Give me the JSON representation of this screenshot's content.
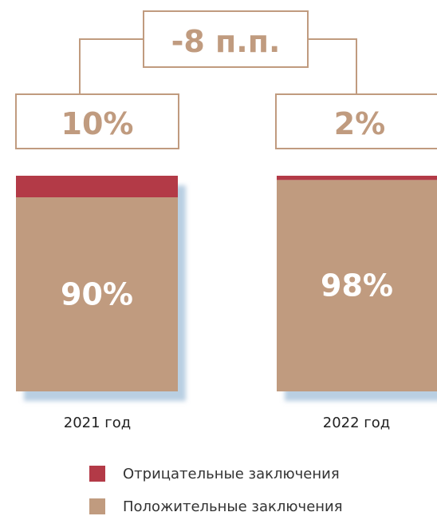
{
  "colors": {
    "negative": "#b33a47",
    "positive": "#c09b7f",
    "frame": "#c09b7f",
    "shadow": "#b9cfe2"
  },
  "change_label": "-8 п.п.",
  "chart_data": {
    "type": "bar",
    "stacked": true,
    "categories": [
      "2021 год",
      "2022 год"
    ],
    "series": [
      {
        "name": "Отрицательные заключения",
        "values": [
          10,
          2
        ],
        "labels": [
          "10%",
          "2%"
        ]
      },
      {
        "name": "Положительные заключения",
        "values": [
          90,
          98
        ],
        "labels": [
          "90%",
          "98%"
        ]
      }
    ],
    "ylim": [
      0,
      100
    ],
    "legend": "bottom"
  }
}
